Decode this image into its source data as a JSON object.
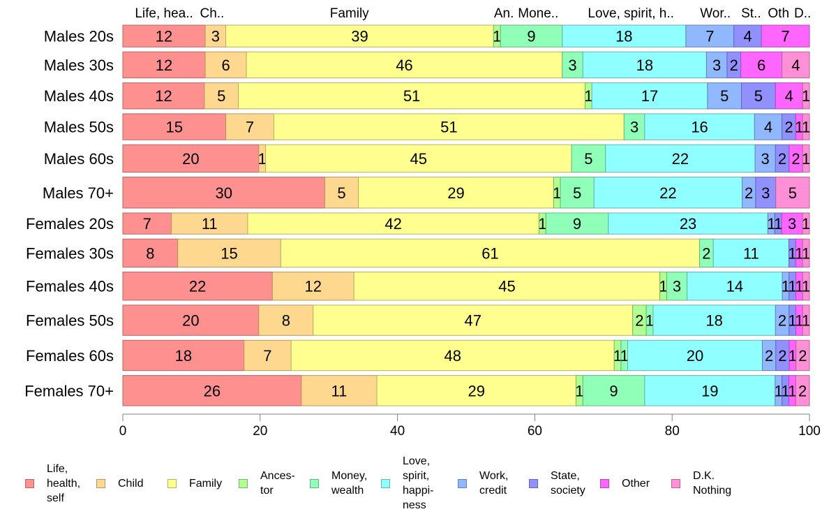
{
  "chart_data": {
    "type": "bar",
    "orientation": "horizontal",
    "stacked": true,
    "title": "",
    "xlabel": "",
    "ylabel": "",
    "xlim": [
      0,
      100
    ],
    "x_ticks": [
      "0",
      "20",
      "40",
      "60",
      "80",
      "100"
    ],
    "x_tick_values": [
      0,
      20,
      40,
      60,
      80,
      100
    ],
    "grid": false,
    "legend_position": "bottom",
    "top_category_labels": [
      "Life, hea..",
      "Ch..",
      "Family",
      "An.",
      "Mone..",
      "Love, spirit, h..",
      "Wor..",
      "St..",
      "Oth",
      "D.."
    ],
    "categories": [
      "Males 20s",
      "Males 30s",
      "Males 40s",
      "Males 50s",
      "Males 60s",
      "Males 70+",
      "Females 20s",
      "Females 30s",
      "Females 40s",
      "Females 50s",
      "Females 60s",
      "Females 70+"
    ],
    "row_relative_size": [
      31,
      37,
      37,
      37,
      39,
      44,
      30,
      40,
      40,
      43,
      43,
      43
    ],
    "series": [
      {
        "name": "Life, health, self",
        "legend_label": "Life,\nhealth,\nself",
        "color": "#ff9090",
        "values": [
          12,
          12,
          12,
          15,
          20,
          30,
          7,
          8,
          22,
          20,
          18,
          26
        ]
      },
      {
        "name": "Child",
        "legend_label": "Child",
        "color": "#ffd890",
        "values": [
          3,
          6,
          5,
          7,
          1,
          5,
          11,
          15,
          12,
          8,
          7,
          11
        ]
      },
      {
        "name": "Family",
        "legend_label": "Family",
        "color": "#ffff90",
        "values": [
          39,
          46,
          51,
          51,
          45,
          29,
          42,
          61,
          45,
          47,
          48,
          29
        ]
      },
      {
        "name": "Ancestor",
        "legend_label": "Ances-\ntor",
        "color": "#b0ff90",
        "values": [
          1,
          0,
          1,
          0,
          0,
          1,
          1,
          0,
          1,
          2,
          1,
          1
        ]
      },
      {
        "name": "Money, wealth",
        "legend_label": "Money,\nwealth",
        "color": "#90ffb8",
        "values": [
          9,
          3,
          0,
          3,
          5,
          5,
          9,
          2,
          3,
          1,
          1,
          9
        ]
      },
      {
        "name": "Love, spirit, happiness",
        "legend_label": "Love,\nspirit,\nhappi-\nness",
        "color": "#90ffff",
        "values": [
          18,
          18,
          17,
          16,
          22,
          22,
          23,
          11,
          14,
          18,
          20,
          19
        ]
      },
      {
        "name": "Work, credit",
        "legend_label": "Work,\ncredit",
        "color": "#90b8ff",
        "values": [
          7,
          3,
          5,
          4,
          3,
          2,
          1,
          0,
          1,
          2,
          2,
          1
        ]
      },
      {
        "name": "State, society",
        "legend_label": "State,\nsociety",
        "color": "#9090ff",
        "values": [
          4,
          2,
          5,
          2,
          2,
          3,
          1,
          1,
          1,
          1,
          2,
          1
        ]
      },
      {
        "name": "Other",
        "legend_label": "Other",
        "color": "#ff66ff",
        "values": [
          7,
          6,
          4,
          1,
          2,
          0,
          3,
          1,
          1,
          1,
          1,
          1
        ]
      },
      {
        "name": "D.K. Nothing",
        "legend_label": "D.K.\nNothing",
        "color": "#ff90d8",
        "values": [
          0,
          4,
          1,
          1,
          1,
          5,
          1,
          1,
          1,
          1,
          2,
          2
        ]
      }
    ]
  }
}
